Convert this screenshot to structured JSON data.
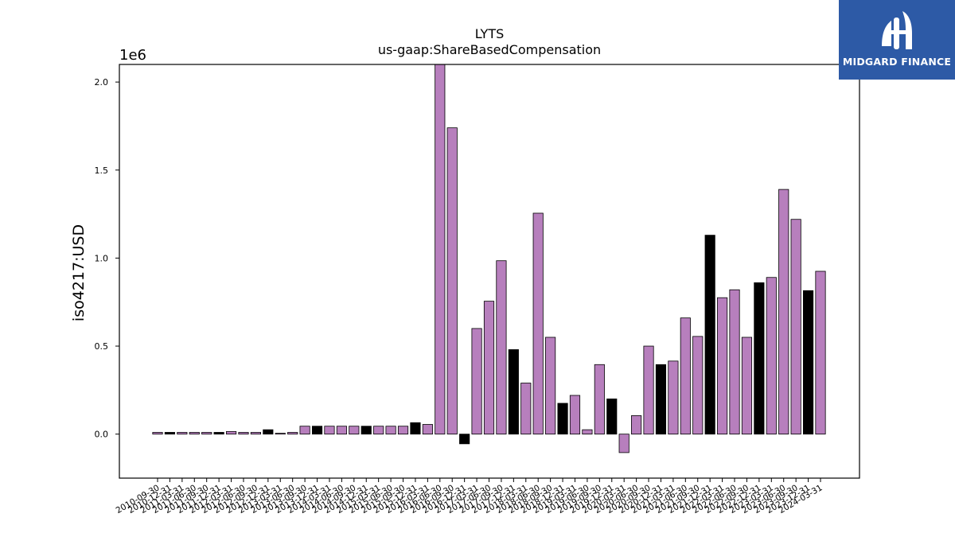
{
  "chart_data": {
    "type": "bar",
    "title": "LYTS",
    "subtitle": "us-gaap:ShareBasedCompensation",
    "ylabel": "iso4217:USD",
    "xlabel": "",
    "y_multiplier": "1e6",
    "ylim": [
      -250000,
      2100000
    ],
    "yticks": [
      0,
      500000,
      1000000,
      1500000,
      2000000
    ],
    "ytick_labels": [
      "0.0",
      "0.5",
      "1.0",
      "1.5",
      "2.0"
    ],
    "grid": false,
    "categories": [
      "2010-09-30",
      "2010-12-31",
      "2011-03-31",
      "2011-06-30",
      "2011-09-30",
      "2011-12-31",
      "2012-03-31",
      "2012-06-30",
      "2012-09-30",
      "2012-12-31",
      "2013-03-31",
      "2013-06-30",
      "2013-09-30",
      "2013-12-31",
      "2014-03-31",
      "2014-06-30",
      "2014-09-30",
      "2014-12-31",
      "2015-03-31",
      "2015-06-30",
      "2015-09-30",
      "2015-12-31",
      "2016-03-31",
      "2016-06-30",
      "2016-09-30",
      "2016-12-31",
      "2017-03-31",
      "2017-06-30",
      "2017-09-30",
      "2017-12-31",
      "2018-03-31",
      "2018-06-30",
      "2018-09-30",
      "2018-12-31",
      "2019-03-31",
      "2019-06-30",
      "2019-09-30",
      "2019-12-31",
      "2020-03-31",
      "2020-06-30",
      "2020-09-30",
      "2020-12-31",
      "2021-03-31",
      "2021-06-30",
      "2021-09-30",
      "2021-12-31",
      "2022-03-31",
      "2022-06-30",
      "2022-09-30",
      "2022-12-31",
      "2023-03-31",
      "2023-06-30",
      "2023-09-30",
      "2023-12-31",
      "2024-03-31"
    ],
    "values": [
      10000,
      10000,
      10000,
      10000,
      10000,
      10000,
      15000,
      10000,
      10000,
      25000,
      5000,
      10000,
      45000,
      45000,
      45000,
      45000,
      45000,
      45000,
      45000,
      45000,
      45000,
      65000,
      55000,
      2100000,
      1740000,
      -55000,
      600000,
      755000,
      985000,
      480000,
      290000,
      1255000,
      550000,
      175000,
      220000,
      25000,
      395000,
      200000,
      -105000,
      105000,
      500000,
      395000,
      415000,
      660000,
      555000,
      1130000,
      775000,
      820000,
      550000,
      860000,
      890000,
      1390000,
      1220000,
      815000,
      925000
    ],
    "bar_colors": [
      "#b77fbd",
      "#000000",
      "#b77fbd",
      "#b77fbd",
      "#b77fbd",
      "#000000",
      "#b77fbd",
      "#b77fbd",
      "#b77fbd",
      "#000000",
      "#b77fbd",
      "#b77fbd",
      "#b77fbd",
      "#000000",
      "#b77fbd",
      "#b77fbd",
      "#b77fbd",
      "#000000",
      "#b77fbd",
      "#b77fbd",
      "#b77fbd",
      "#000000",
      "#b77fbd",
      "#b77fbd",
      "#b77fbd",
      "#000000",
      "#b77fbd",
      "#b77fbd",
      "#b77fbd",
      "#000000",
      "#b77fbd",
      "#b77fbd",
      "#b77fbd",
      "#000000",
      "#b77fbd",
      "#b77fbd",
      "#b77fbd",
      "#000000",
      "#b77fbd",
      "#b77fbd",
      "#b77fbd",
      "#000000",
      "#b77fbd",
      "#b77fbd",
      "#b77fbd",
      "#000000",
      "#b77fbd",
      "#b77fbd",
      "#b77fbd",
      "#000000",
      "#b77fbd",
      "#b77fbd",
      "#b77fbd",
      "#000000",
      "#b77fbd"
    ]
  },
  "logo": {
    "text": "MIDGARD FINANCE",
    "background": "#2d5aa6"
  }
}
